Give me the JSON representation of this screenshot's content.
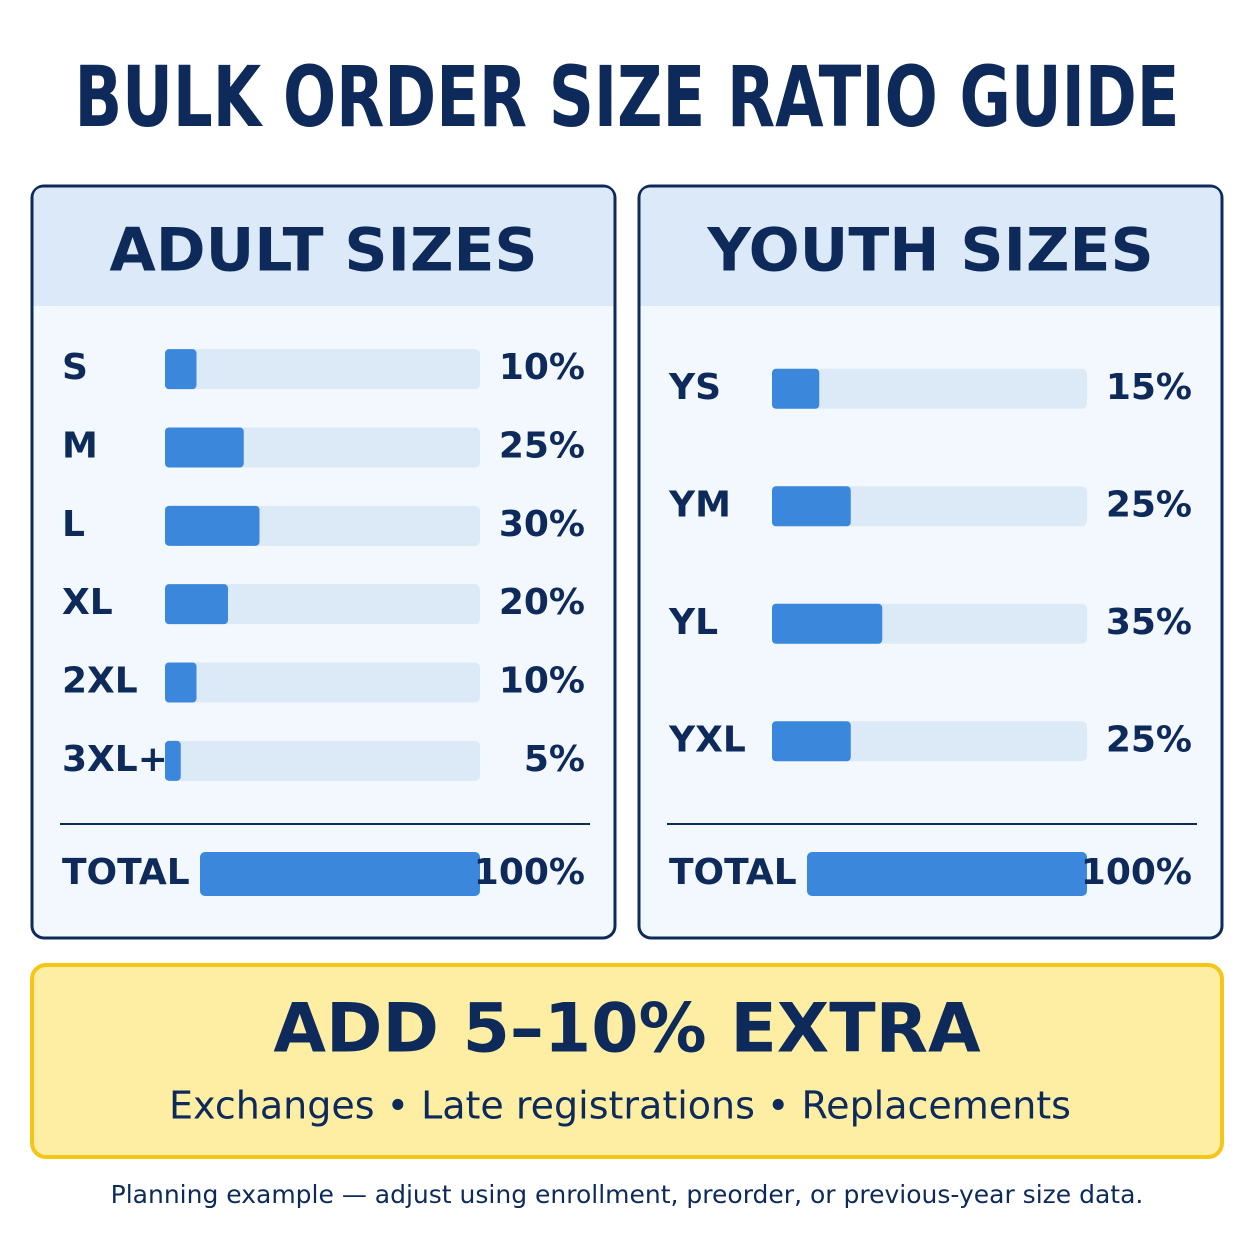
{
  "header": {
    "title": "BULK ORDER SIZE RATIO GUIDE"
  },
  "chart_data": [
    {
      "type": "bar",
      "title": "ADULT SIZES",
      "categories": [
        "S",
        "M",
        "L",
        "XL",
        "2XL",
        "3XL+"
      ],
      "values": [
        10,
        25,
        30,
        20,
        10,
        5
      ],
      "value_labels": [
        "10%",
        "25%",
        "30%",
        "20%",
        "10%",
        "5%"
      ],
      "xlim": [
        0,
        100
      ],
      "color": "#3a87dc",
      "track_color": "#dce9f7",
      "total_label": "TOTAL",
      "total": 100,
      "total_value_label": "100%"
    },
    {
      "type": "bar",
      "title": "YOUTH SIZES",
      "categories": [
        "YS",
        "YM",
        "YL",
        "YXL"
      ],
      "values": [
        15,
        25,
        35,
        25
      ],
      "value_labels": [
        "15%",
        "25%",
        "35%",
        "25%"
      ],
      "xlim": [
        0,
        100
      ],
      "color": "#3a87dc",
      "track_color": "#dce9f7",
      "total_label": "TOTAL",
      "total": 100,
      "total_value_label": "100%"
    }
  ],
  "callout": {
    "title": "ADD 5–10% EXTRA",
    "text": "Exchanges • Late registrations • Replacements"
  },
  "footnote": "Planning example — adjust using enrollment, preorder, or previous-year size data."
}
